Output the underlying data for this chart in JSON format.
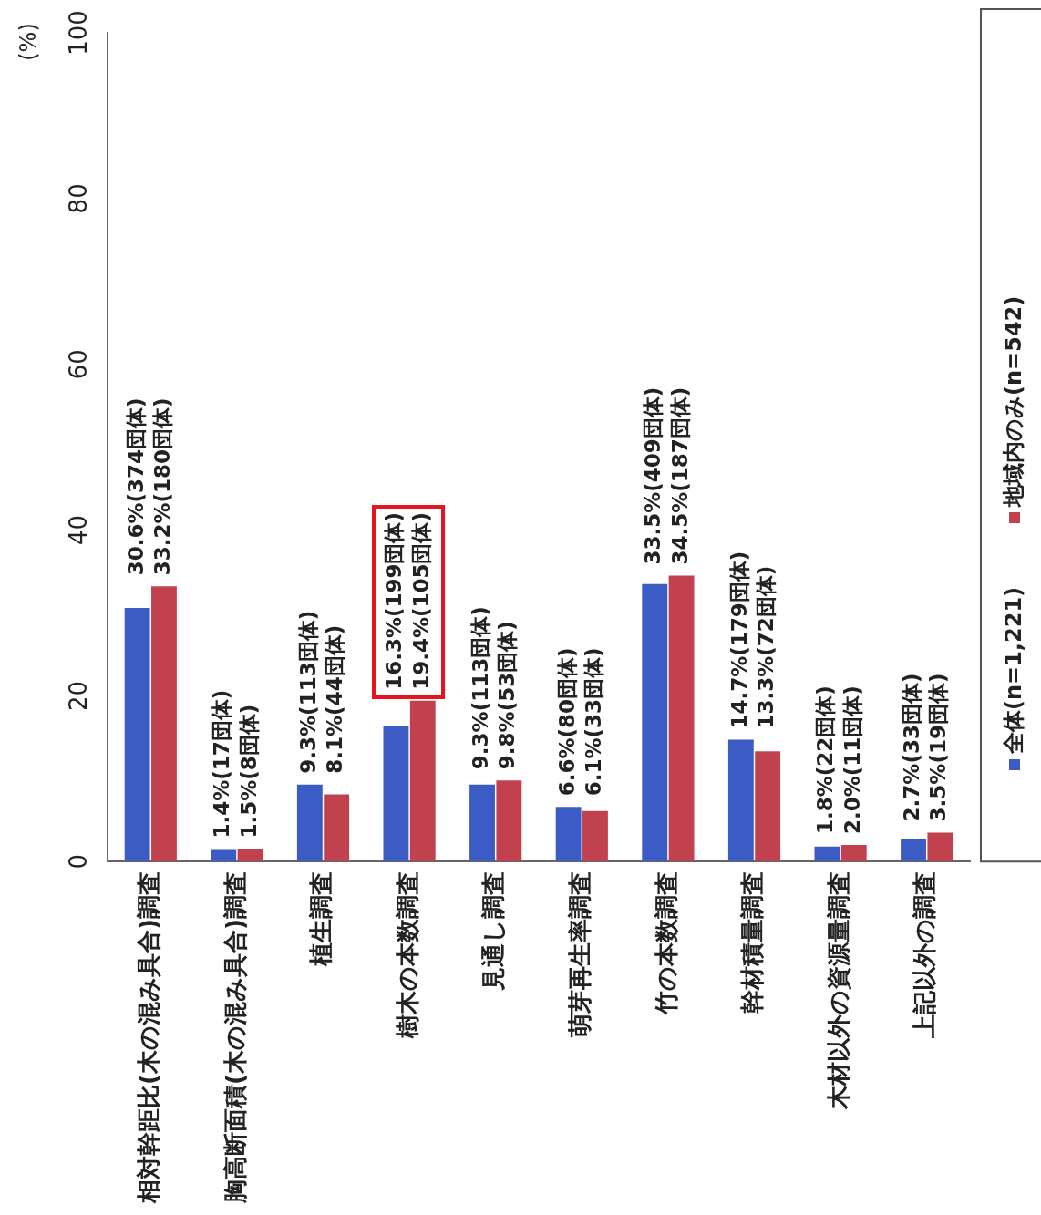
{
  "chart_data": {
    "type": "bar",
    "ylabel": "(%)",
    "categories": [
      "相対幹距比(木の混み具合)調査",
      "胸高断面積(木の混み具合)調査",
      "植生調査",
      "樹木の本数調査",
      "見通し調査",
      "萌芽再生率調査",
      "竹の本数調査",
      "幹材積量調査",
      "木材以外の資源量調査",
      "上記以外の調査"
    ],
    "series": [
      {
        "name": "全体(n=1,221)",
        "color": "#3b5cc4",
        "values": [
          30.6,
          1.4,
          9.3,
          16.3,
          9.3,
          6.6,
          33.5,
          14.7,
          1.8,
          2.7
        ],
        "value_labels": [
          "30.6%(374団体)",
          "1.4%(17団体)",
          "9.3%(113団体)",
          "16.3%(199団体)",
          "9.3%(113団体)",
          "6.6%(80団体)",
          "33.5%(409団体)",
          "14.7%(179団体)",
          "1.8%(22団体)",
          "2.7%(33団体)"
        ]
      },
      {
        "name": "地域内のみ(n=542)",
        "color": "#c2414f",
        "values": [
          33.2,
          1.5,
          8.1,
          19.4,
          9.8,
          6.1,
          34.5,
          13.3,
          2.0,
          3.5
        ],
        "value_labels": [
          "33.2%(180団体)",
          "1.5%(8団体)",
          "8.1%(44団体)",
          "19.4%(105団体)",
          "9.8%(53団体)",
          "6.1%(33団体)",
          "34.5%(187団体)",
          "13.3%(72団体)",
          "2.0%(11団体)",
          "3.5%(19団体)"
        ]
      }
    ],
    "ylim": [
      0,
      100
    ],
    "yticks": [
      0,
      20,
      40,
      60,
      80,
      100
    ],
    "legend": "right"
  }
}
